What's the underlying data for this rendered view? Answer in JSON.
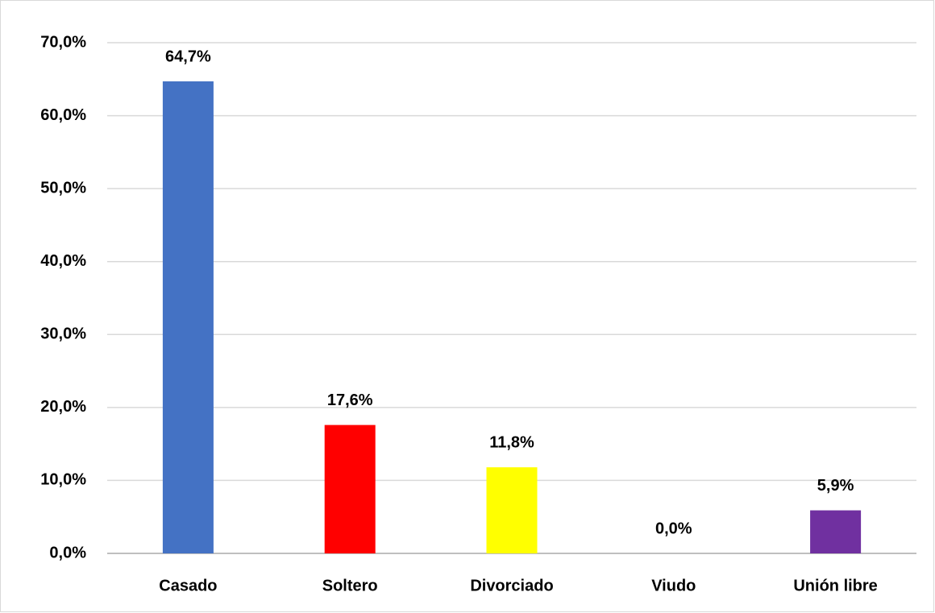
{
  "chart_data": {
    "type": "bar",
    "categories": [
      "Casado",
      "Soltero",
      "Divorciado",
      "Viudo",
      "Unión libre"
    ],
    "values": [
      64.7,
      17.6,
      11.8,
      0,
      5.9
    ],
    "value_labels": [
      "64,7%",
      "17,6%",
      "11,8%",
      "0,0%",
      "5,9%"
    ],
    "colors": [
      "#4472c4",
      "#ff0000",
      "#ffff00",
      "#a5a5a5",
      "#7030a0"
    ],
    "ylim": [
      0,
      70
    ],
    "yticks": [
      {
        "value": 0,
        "label": "0,0%"
      },
      {
        "value": 10,
        "label": "10,0%"
      },
      {
        "value": 20,
        "label": "20,0%"
      },
      {
        "value": 30,
        "label": "30,0%"
      },
      {
        "value": 40,
        "label": "40,0%"
      },
      {
        "value": 50,
        "label": "50,0%"
      },
      {
        "value": 60,
        "label": "60,0%"
      },
      {
        "value": 70,
        "label": "70,0%"
      }
    ],
    "grid": true
  }
}
